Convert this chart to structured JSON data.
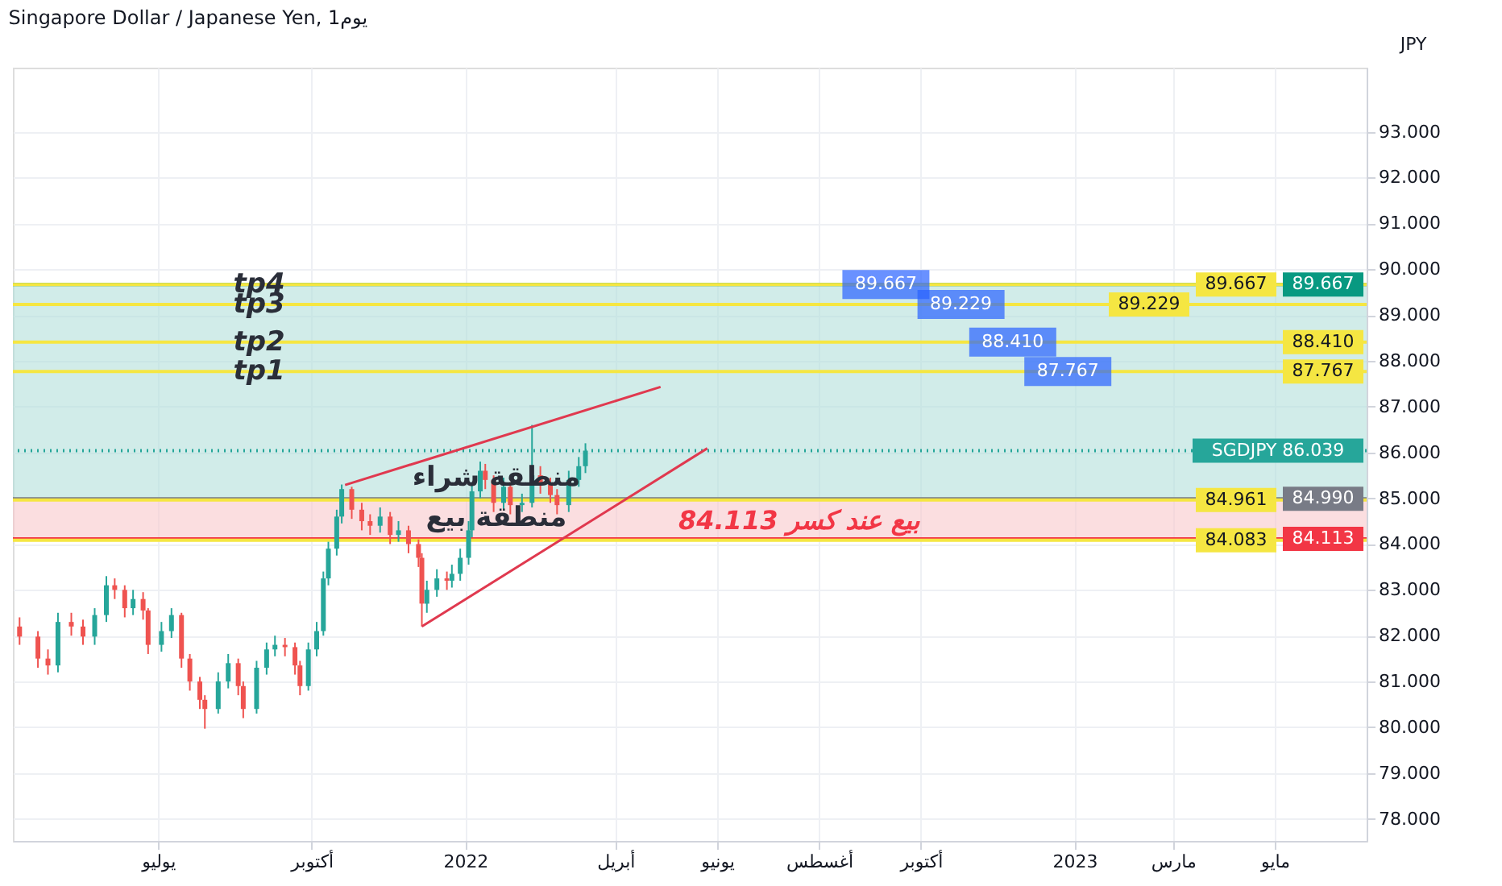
{
  "chart_data": {
    "type": "candlestick",
    "title": "Singapore Dollar / Japanese Yen, 1يوم",
    "ylabel": "JPY",
    "x": [
      "2021-04-09",
      "2021-04-20",
      "2021-04-26",
      "2021-05-02",
      "2021-05-10",
      "2021-05-17",
      "2021-05-24",
      "2021-05-31",
      "2021-06-05",
      "2021-06-11",
      "2021-06-16",
      "2021-06-22",
      "2021-06-25",
      "2021-07-03",
      "2021-07-09",
      "2021-07-15",
      "2021-07-20",
      "2021-07-26",
      "2021-07-29",
      "2021-08-06",
      "2021-08-12",
      "2021-08-18",
      "2021-08-21",
      "2021-08-29",
      "2021-09-04",
      "2021-09-09",
      "2021-09-15",
      "2021-09-21",
      "2021-09-24",
      "2021-09-29",
      "2021-10-04",
      "2021-10-08",
      "2021-10-11",
      "2021-10-16",
      "2021-10-19",
      "2021-10-25",
      "2021-10-31",
      "2021-11-05",
      "2021-11-11",
      "2021-11-17",
      "2021-11-22",
      "2021-11-28",
      "2021-12-04",
      "2021-12-06",
      "2021-12-09",
      "2021-12-15",
      "2021-12-21",
      "2021-12-24",
      "2021-12-29",
      "2022-01-03",
      "2022-01-05",
      "2022-01-10",
      "2022-01-13",
      "2022-01-18",
      "2022-01-24",
      "2022-01-28",
      "2022-02-04",
      "2022-02-10",
      "2022-02-15",
      "2022-02-21",
      "2022-02-25",
      "2022-03-04",
      "2022-03-10",
      "2022-03-14"
    ],
    "ohlc": [
      [
        82.2,
        82.4,
        81.8,
        81.98
      ],
      [
        81.98,
        82.1,
        81.3,
        81.5
      ],
      [
        81.5,
        81.7,
        81.15,
        81.35
      ],
      [
        81.35,
        82.5,
        81.2,
        82.3
      ],
      [
        82.3,
        82.5,
        82.0,
        82.2
      ],
      [
        82.2,
        82.35,
        81.8,
        81.98
      ],
      [
        81.98,
        82.6,
        81.8,
        82.45
      ],
      [
        82.45,
        83.3,
        82.3,
        83.1
      ],
      [
        83.1,
        83.25,
        82.8,
        83.0
      ],
      [
        83.0,
        83.1,
        82.4,
        82.6
      ],
      [
        82.6,
        83.0,
        82.45,
        82.8
      ],
      [
        82.8,
        82.95,
        82.35,
        82.55
      ],
      [
        82.55,
        82.6,
        81.6,
        81.8
      ],
      [
        81.8,
        82.3,
        81.65,
        82.1
      ],
      [
        82.1,
        82.6,
        81.95,
        82.45
      ],
      [
        82.45,
        82.5,
        81.3,
        81.5
      ],
      [
        81.5,
        81.6,
        80.8,
        81.0
      ],
      [
        81.0,
        81.1,
        80.4,
        80.6
      ],
      [
        80.6,
        80.7,
        79.97,
        80.4
      ],
      [
        80.4,
        81.2,
        80.3,
        81.0
      ],
      [
        81.0,
        81.6,
        80.85,
        81.4
      ],
      [
        81.4,
        81.5,
        80.7,
        80.9
      ],
      [
        80.9,
        81.0,
        80.2,
        80.4
      ],
      [
        80.4,
        81.45,
        80.3,
        81.3
      ],
      [
        81.3,
        81.85,
        81.15,
        81.7
      ],
      [
        81.7,
        82.0,
        81.55,
        81.8
      ],
      [
        81.8,
        81.95,
        81.55,
        81.75
      ],
      [
        81.75,
        81.85,
        81.15,
        81.35
      ],
      [
        81.35,
        81.45,
        80.7,
        80.9
      ],
      [
        80.9,
        81.85,
        80.8,
        81.7
      ],
      [
        81.7,
        82.3,
        81.55,
        82.1
      ],
      [
        82.1,
        83.4,
        82.0,
        83.25
      ],
      [
        83.25,
        84.05,
        83.1,
        83.9
      ],
      [
        83.9,
        84.75,
        83.75,
        84.6
      ],
      [
        84.6,
        85.3,
        84.45,
        85.2
      ],
      [
        85.2,
        85.25,
        84.55,
        84.75
      ],
      [
        84.75,
        84.9,
        84.3,
        84.5
      ],
      [
        84.5,
        84.65,
        84.2,
        84.4
      ],
      [
        84.4,
        84.8,
        84.25,
        84.6
      ],
      [
        84.6,
        84.7,
        84.0,
        84.2
      ],
      [
        84.2,
        84.5,
        84.05,
        84.3
      ],
      [
        84.3,
        84.4,
        83.8,
        84.0
      ],
      [
        84.0,
        84.1,
        83.5,
        83.7
      ],
      [
        83.7,
        83.8,
        82.2,
        82.7
      ],
      [
        82.7,
        83.2,
        82.5,
        83.0
      ],
      [
        83.0,
        83.45,
        82.85,
        83.25
      ],
      [
        83.25,
        83.4,
        83.0,
        83.2
      ],
      [
        83.2,
        83.55,
        83.05,
        83.35
      ],
      [
        83.35,
        83.9,
        83.2,
        83.7
      ],
      [
        83.7,
        84.5,
        83.55,
        84.3
      ],
      [
        84.3,
        85.3,
        84.15,
        85.15
      ],
      [
        85.15,
        85.8,
        85.0,
        85.6
      ],
      [
        85.6,
        85.75,
        85.2,
        85.4
      ],
      [
        85.4,
        85.5,
        84.7,
        84.9
      ],
      [
        84.9,
        85.45,
        84.75,
        85.25
      ],
      [
        85.25,
        85.35,
        84.65,
        84.85
      ],
      [
        84.85,
        85.1,
        84.7,
        84.9
      ],
      [
        84.9,
        86.6,
        84.8,
        85.5
      ],
      [
        85.5,
        85.7,
        85.1,
        85.3
      ],
      [
        85.3,
        85.45,
        84.9,
        85.07
      ],
      [
        85.07,
        85.2,
        84.65,
        84.85
      ],
      [
        84.85,
        85.6,
        84.7,
        85.4
      ],
      [
        85.4,
        85.9,
        85.25,
        85.7
      ],
      [
        85.7,
        86.2,
        85.55,
        86.039
      ]
    ],
    "colors": [
      "#ef5350",
      "#ef5350",
      "#ef5350",
      "#26a69a",
      "#ef5350",
      "#ef5350",
      "#26a69a",
      "#26a69a",
      "#ef5350",
      "#ef5350",
      "#26a69a",
      "#ef5350",
      "#ef5350",
      "#26a69a",
      "#26a69a",
      "#ef5350",
      "#ef5350",
      "#ef5350",
      "#ef5350",
      "#26a69a",
      "#26a69a",
      "#ef5350",
      "#ef5350",
      "#26a69a",
      "#26a69a",
      "#26a69a",
      "#ef5350",
      "#ef5350",
      "#ef5350",
      "#26a69a",
      "#26a69a",
      "#26a69a",
      "#26a69a",
      "#26a69a",
      "#26a69a",
      "#ef5350",
      "#ef5350",
      "#ef5350",
      "#26a69a",
      "#ef5350",
      "#26a69a",
      "#ef5350",
      "#ef5350",
      "#ef5350",
      "#26a69a",
      "#26a69a",
      "#ef5350",
      "#26a69a",
      "#26a69a",
      "#26a69a",
      "#26a69a",
      "#26a69a",
      "#ef5350",
      "#ef5350",
      "#26a69a",
      "#ef5350",
      "#26a69a",
      "#26a69a",
      "#ef5350",
      "#ef5350",
      "#ef5350",
      "#26a69a",
      "#26a69a",
      "#26a69a"
    ],
    "series": [
      {
        "type": "line",
        "color": "#e0394f",
        "x": [
          "2021-10-21",
          "2022-04-28"
        ],
        "values": [
          85.29,
          87.43
        ]
      },
      {
        "type": "line",
        "color": "#e0394f",
        "x": [
          "2021-12-06",
          "2022-05-26"
        ],
        "values": [
          82.2,
          86.09
        ]
      }
    ],
    "bands": [
      {
        "axis": "y",
        "from": 84.99,
        "to": 89.667,
        "label": "منطقة شراء",
        "color": "#b2dfdb"
      },
      {
        "axis": "y",
        "from": 84.113,
        "to": 84.99,
        "label": "منطقة بيع",
        "color": "#f8c8cc"
      }
    ],
    "ref_lines": [
      {
        "axis": "y",
        "value": 89.667,
        "label": "89.667",
        "color": "#089981"
      },
      {
        "axis": "y",
        "value": 89.667,
        "label": "89.667",
        "color": "#f5e642"
      },
      {
        "axis": "y",
        "value": 89.229,
        "label": "89.229",
        "color": "#f5e642"
      },
      {
        "axis": "y",
        "value": 88.41,
        "label": "88.410",
        "color": "#f5e642"
      },
      {
        "axis": "y",
        "value": 87.767,
        "label": "87.767",
        "color": "#f5e642"
      },
      {
        "axis": "y",
        "value": 86.039,
        "label": "SGDJPY  86.039",
        "color": "#26a69a",
        "line_style": "dotted"
      },
      {
        "axis": "y",
        "value": 84.99,
        "label": "84.990",
        "color": "#787b86"
      },
      {
        "axis": "y",
        "value": 84.961,
        "label": "84.961",
        "color": "#f5e642"
      },
      {
        "axis": "y",
        "value": 84.113,
        "label": "84.113",
        "color": "#f23645"
      },
      {
        "axis": "y",
        "value": 84.083,
        "label": "84.083",
        "color": "#f5e642"
      }
    ],
    "annotations": [
      {
        "text": "بيع عند كسر 84.113",
        "x": "2022-07-20",
        "y": 84.113
      },
      {
        "text": "tp4",
        "x": "2021-09-15",
        "y": 89.667
      },
      {
        "text": "tp3",
        "x": "2021-09-15",
        "y": 89.229
      },
      {
        "text": "tp2",
        "x": "2021-09-15",
        "y": 88.41
      },
      {
        "text": "tp1",
        "x": "2021-09-15",
        "y": 87.767
      },
      {
        "text": "89.667",
        "x": "2022-09-10",
        "y": 89.667
      },
      {
        "text": "89.229",
        "x": "2022-10-25",
        "y": 89.229
      },
      {
        "text": "88.410",
        "x": "2022-11-25",
        "y": 88.41
      },
      {
        "text": "87.767",
        "x": "2022-12-28",
        "y": 87.767
      }
    ],
    "xlim": [
      "2021-04-05",
      "2023-06-25"
    ],
    "xticks": [
      {
        "value": "2021-07-01",
        "label": "يوليو"
      },
      {
        "value": "2021-10-01",
        "label": "أكتوبر"
      },
      {
        "value": "2022-01-01",
        "label": "2022"
      },
      {
        "value": "2022-04-01",
        "label": "أبريل"
      },
      {
        "value": "2022-06-01",
        "label": "يونيو"
      },
      {
        "value": "2022-08-01",
        "label": "أغسطس"
      },
      {
        "value": "2022-10-01",
        "label": "أكتوبر"
      },
      {
        "value": "2023-01-01",
        "label": "2023"
      },
      {
        "value": "2023-03-01",
        "label": "مارس"
      },
      {
        "value": "2023-05-01",
        "label": "مايو"
      }
    ],
    "ylim": [
      77.52,
      94.4
    ],
    "yticks": [
      {
        "value": 78,
        "label": "78.000"
      },
      {
        "value": 79,
        "label": "79.000"
      },
      {
        "value": 80,
        "label": "80.000"
      },
      {
        "value": 81,
        "label": "81.000"
      },
      {
        "value": 82,
        "label": "82.000"
      },
      {
        "value": 83,
        "label": "83.000"
      },
      {
        "value": 84,
        "label": "84.000"
      },
      {
        "value": 85,
        "label": "85.000"
      },
      {
        "value": 86,
        "label": "86.000"
      },
      {
        "value": 87,
        "label": "87.000"
      },
      {
        "value": 88,
        "label": "88.000"
      },
      {
        "value": 89,
        "label": "89.000"
      },
      {
        "value": 90,
        "label": "90.000"
      },
      {
        "value": 91,
        "label": "91.000"
      },
      {
        "value": 92,
        "label": "92.000"
      },
      {
        "value": 93,
        "label": "93.000"
      }
    ],
    "grid": true
  }
}
